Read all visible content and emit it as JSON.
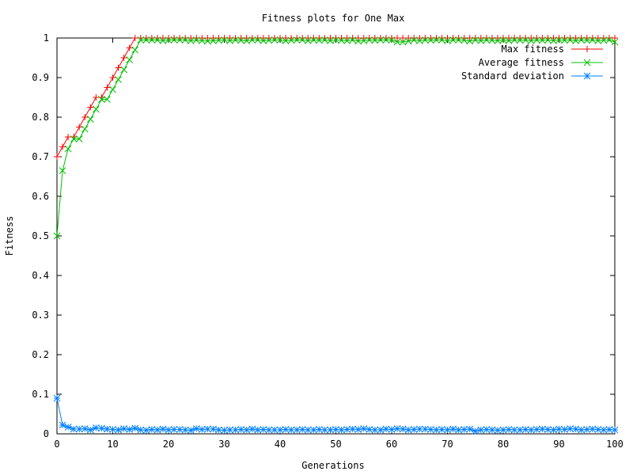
{
  "chart_data": {
    "type": "line",
    "title": "Fitness plots for One Max",
    "xlabel": "Generations",
    "ylabel": "Fitness",
    "xlim": [
      0,
      100
    ],
    "ylim": [
      0,
      1
    ],
    "x_ticks": [
      "0",
      "10",
      "20",
      "30",
      "40",
      "50",
      "60",
      "70",
      "80",
      "90",
      "100"
    ],
    "y_ticks": [
      "0",
      "0.1",
      "0.2",
      "0.3",
      "0.4",
      "0.5",
      "0.6",
      "0.7",
      "0.8",
      "0.9",
      "1"
    ],
    "grid": false,
    "legend_position": "top-right",
    "series": [
      {
        "name": "Max fitness",
        "color": "#ff0000",
        "marker": "plus",
        "x": [
          0,
          1,
          2,
          3,
          4,
          5,
          6,
          7,
          8,
          9,
          10,
          11,
          12,
          13,
          14,
          15,
          16,
          17,
          18,
          19,
          20,
          21,
          22,
          23,
          24,
          25,
          26,
          27,
          28,
          29,
          30,
          31,
          32,
          33,
          34,
          35,
          36,
          37,
          38,
          39,
          40,
          41,
          42,
          43,
          44,
          45,
          46,
          47,
          48,
          49,
          50,
          51,
          52,
          53,
          54,
          55,
          56,
          57,
          58,
          59,
          60,
          61,
          62,
          63,
          64,
          65,
          66,
          67,
          68,
          69,
          70,
          71,
          72,
          73,
          74,
          75,
          76,
          77,
          78,
          79,
          80,
          81,
          82,
          83,
          84,
          85,
          86,
          87,
          88,
          89,
          90,
          91,
          92,
          93,
          94,
          95,
          96,
          97,
          98,
          99,
          100
        ],
        "y": [
          0.7,
          0.725,
          0.75,
          0.75,
          0.775,
          0.8,
          0.825,
          0.85,
          0.85,
          0.875,
          0.9,
          0.925,
          0.95,
          0.975,
          1,
          1,
          1,
          1,
          1,
          1,
          1,
          1,
          1,
          1,
          1,
          1,
          1,
          1,
          1,
          1,
          1,
          1,
          1,
          1,
          1,
          1,
          1,
          1,
          1,
          1,
          1,
          1,
          1,
          1,
          1,
          1,
          1,
          1,
          1,
          1,
          1,
          1,
          1,
          1,
          1,
          1,
          1,
          1,
          1,
          1,
          1,
          1,
          1,
          1,
          1,
          1,
          1,
          1,
          1,
          1,
          1,
          1,
          1,
          1,
          1,
          1,
          1,
          1,
          1,
          1,
          1,
          1,
          1,
          1,
          1,
          1,
          1,
          1,
          1,
          1,
          1,
          1,
          1,
          1,
          1,
          1,
          1,
          1,
          1,
          1,
          1
        ]
      },
      {
        "name": "Average fitness",
        "color": "#00c000",
        "marker": "cross",
        "x": [
          0,
          1,
          2,
          3,
          4,
          5,
          6,
          7,
          8,
          9,
          10,
          11,
          12,
          13,
          14,
          15,
          16,
          17,
          18,
          19,
          20,
          21,
          22,
          23,
          24,
          25,
          26,
          27,
          28,
          29,
          30,
          31,
          32,
          33,
          34,
          35,
          36,
          37,
          38,
          39,
          40,
          41,
          42,
          43,
          44,
          45,
          46,
          47,
          48,
          49,
          50,
          51,
          52,
          53,
          54,
          55,
          56,
          57,
          58,
          59,
          60,
          61,
          62,
          63,
          64,
          65,
          66,
          67,
          68,
          69,
          70,
          71,
          72,
          73,
          74,
          75,
          76,
          77,
          78,
          79,
          80,
          81,
          82,
          83,
          84,
          85,
          86,
          87,
          88,
          89,
          90,
          91,
          92,
          93,
          94,
          95,
          96,
          97,
          98,
          99,
          100
        ],
        "y": [
          0.5,
          0.665,
          0.72,
          0.745,
          0.745,
          0.77,
          0.795,
          0.82,
          0.845,
          0.845,
          0.87,
          0.895,
          0.92,
          0.945,
          0.97,
          0.995,
          0.995,
          0.995,
          0.995,
          0.993,
          0.995,
          0.995,
          0.995,
          0.995,
          0.993,
          0.995,
          0.993,
          0.992,
          0.993,
          0.994,
          0.995,
          0.993,
          0.995,
          0.994,
          0.993,
          0.995,
          0.995,
          0.993,
          0.994,
          0.995,
          0.995,
          0.993,
          0.994,
          0.995,
          0.995,
          0.993,
          0.995,
          0.994,
          0.995,
          0.993,
          0.995,
          0.994,
          0.993,
          0.995,
          0.992,
          0.993,
          0.995,
          0.994,
          0.995,
          0.995,
          0.995,
          0.99,
          0.99,
          0.992,
          0.995,
          0.993,
          0.995,
          0.994,
          0.995,
          0.995,
          0.993,
          0.995,
          0.995,
          0.994,
          0.992,
          0.995,
          0.993,
          0.995,
          0.994,
          0.993,
          0.995,
          0.993,
          0.995,
          0.994,
          0.995,
          0.993,
          0.995,
          0.994,
          0.995,
          0.993,
          0.995,
          0.994,
          0.995,
          0.993,
          0.995,
          0.994,
          0.995,
          0.993,
          0.994,
          0.995,
          0.99
        ]
      },
      {
        "name": "Standard deviation",
        "color": "#0080ff",
        "marker": "star",
        "x": [
          0,
          1,
          2,
          3,
          4,
          5,
          6,
          7,
          8,
          9,
          10,
          11,
          12,
          13,
          14,
          15,
          16,
          17,
          18,
          19,
          20,
          21,
          22,
          23,
          24,
          25,
          26,
          27,
          28,
          29,
          30,
          31,
          32,
          33,
          34,
          35,
          36,
          37,
          38,
          39,
          40,
          41,
          42,
          43,
          44,
          45,
          46,
          47,
          48,
          49,
          50,
          51,
          52,
          53,
          54,
          55,
          56,
          57,
          58,
          59,
          60,
          61,
          62,
          63,
          64,
          65,
          66,
          67,
          68,
          69,
          70,
          71,
          72,
          73,
          74,
          75,
          76,
          77,
          78,
          79,
          80,
          81,
          82,
          83,
          84,
          85,
          86,
          87,
          88,
          89,
          90,
          91,
          92,
          93,
          94,
          95,
          96,
          97,
          98,
          99,
          100
        ],
        "y": [
          0.09,
          0.022,
          0.017,
          0.012,
          0.012,
          0.013,
          0.01,
          0.015,
          0.014,
          0.012,
          0.011,
          0.01,
          0.013,
          0.011,
          0.014,
          0.01,
          0.009,
          0.011,
          0.01,
          0.012,
          0.01,
          0.011,
          0.011,
          0.01,
          0.009,
          0.013,
          0.011,
          0.012,
          0.012,
          0.01,
          0.009,
          0.01,
          0.01,
          0.011,
          0.01,
          0.012,
          0.01,
          0.011,
          0.01,
          0.01,
          0.01,
          0.011,
          0.01,
          0.01,
          0.011,
          0.01,
          0.01,
          0.011,
          0.01,
          0.01,
          0.011,
          0.01,
          0.011,
          0.012,
          0.011,
          0.013,
          0.011,
          0.01,
          0.01,
          0.012,
          0.011,
          0.013,
          0.012,
          0.01,
          0.011,
          0.012,
          0.012,
          0.011,
          0.01,
          0.011,
          0.01,
          0.012,
          0.01,
          0.011,
          0.012,
          0.007,
          0.01,
          0.011,
          0.01,
          0.009,
          0.01,
          0.011,
          0.01,
          0.01,
          0.011,
          0.01,
          0.011,
          0.012,
          0.011,
          0.01,
          0.012,
          0.011,
          0.013,
          0.012,
          0.01,
          0.011,
          0.012,
          0.011,
          0.01,
          0.011,
          0.01
        ]
      }
    ]
  }
}
